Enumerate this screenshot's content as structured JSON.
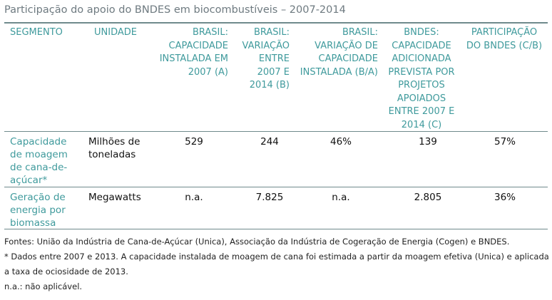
{
  "title": "Participação do apoio do BNDES em biocombustíveis – 2007-2014",
  "headers": {
    "segmento": "SEGMENTO",
    "unidade": "UNIDADE",
    "brasil_capacidade": "BRASIL: CAPACIDADE INSTALADA EM 2007 (A)",
    "brasil_variacao": "BRASIL: VARIAÇÃO ENTRE 2007 E 2014 (B)",
    "brasil_variacao_pct": "BRASIL: VARIAÇÃO DE CAPACIDADE INSTALADA (B/A)",
    "bndes_capacidade": "BNDES: CAPACIDADE ADICIONADA PREVISTA POR PROJETOS APOIADOS ENTRE 2007 E 2014 (C)",
    "participacao": "PARTICIPAÇÃO DO BNDES (C/B)"
  },
  "rows": [
    {
      "segmento": "Capacidade de moagem de cana-de-açúcar*",
      "unidade": "Milhões de toneladas",
      "a": "529",
      "b": "244",
      "ba": "46%",
      "c": "139",
      "cb": "57%"
    },
    {
      "segmento": "Geração de energia por biomassa",
      "unidade": "Megawatts",
      "a": "n.a.",
      "b": "7.825",
      "ba": "n.a.",
      "c": "2.805",
      "cb": "36%"
    }
  ],
  "footnotes": {
    "fontes": "Fontes: União da Indústria de Cana-de-Açúcar (Unica), Associação da Indústria de Cogeração de Energia (Cogen) e BNDES.",
    "asterisco_1": "* Dados entre 2007 e 2013. A capacidade instalada de moagem de cana foi estimada a partir da moagem efetiva (Unica) e aplicada",
    "asterisco_2": "a taxa de ociosidade de 2013.",
    "na": "n.a.: não aplicável."
  }
}
